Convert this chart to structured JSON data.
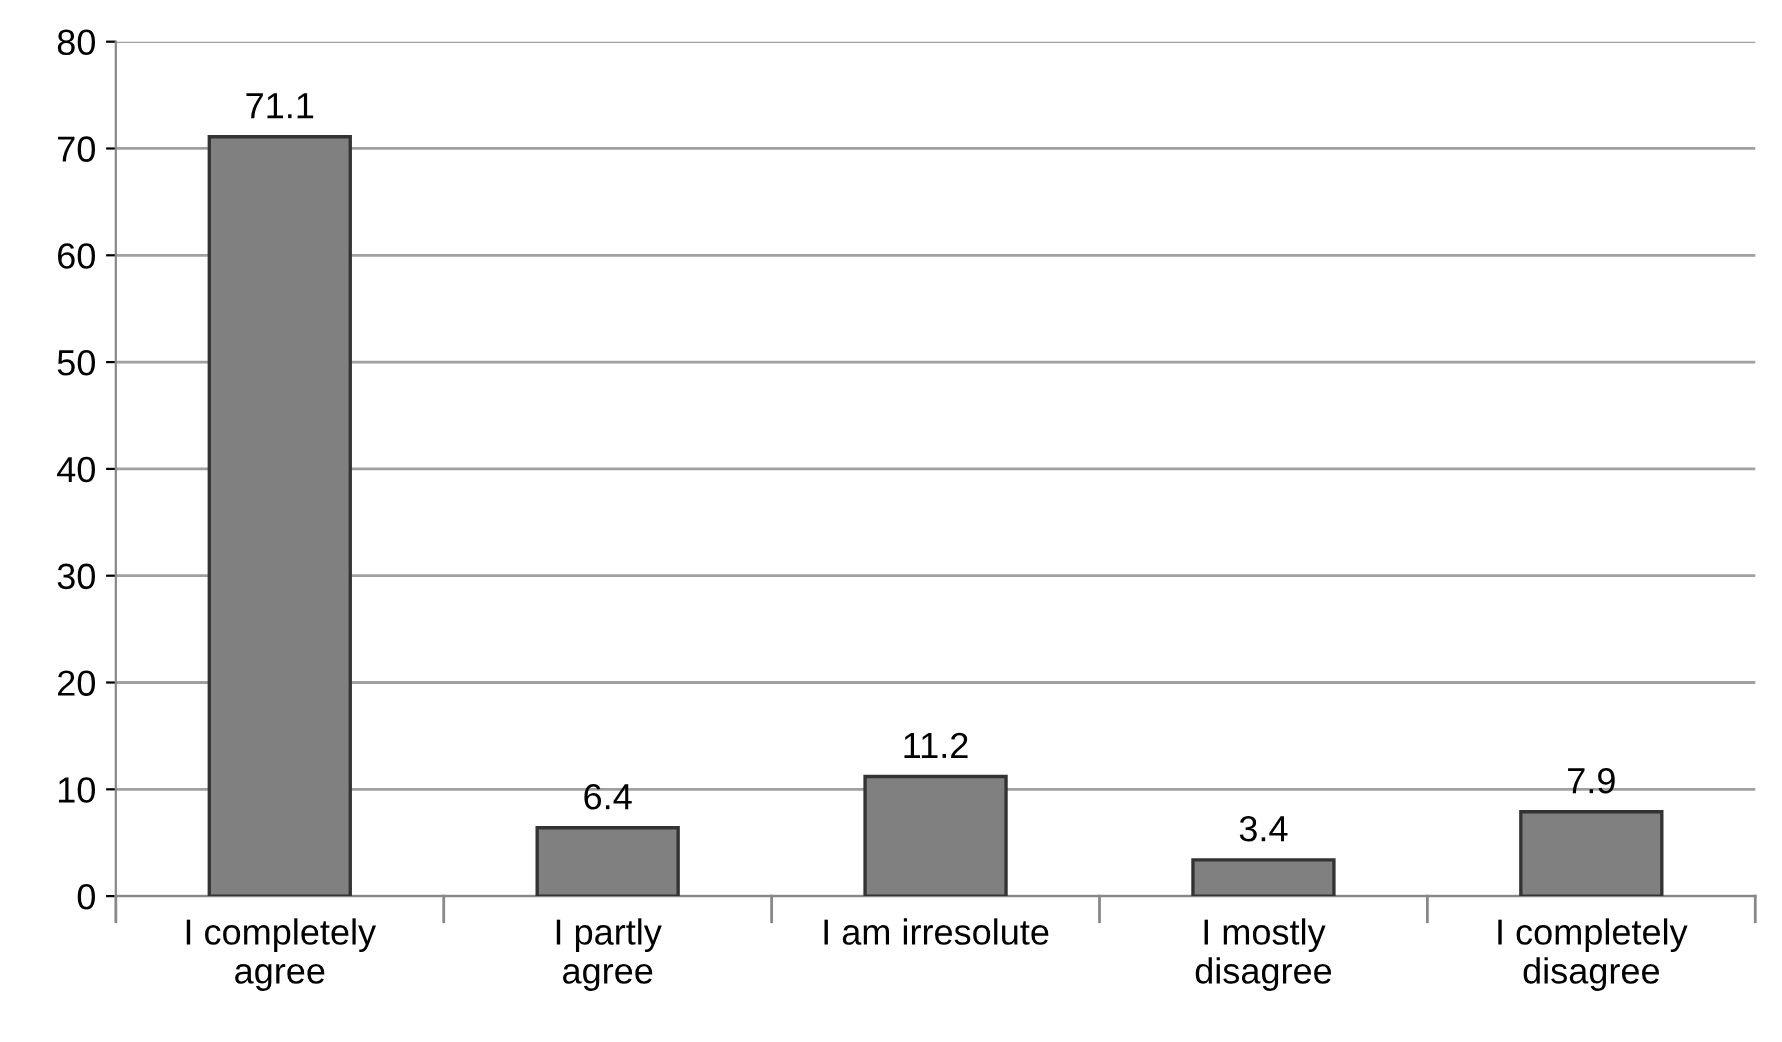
{
  "chart_data": {
    "type": "bar",
    "categories": [
      "I completely\nagree",
      "I partly\nagree",
      "I am irresolute",
      "I mostly\ndisagree",
      "I completely\ndisagree"
    ],
    "values": [
      71.1,
      6.4,
      11.2,
      3.4,
      7.9
    ],
    "color": "#808080",
    "ylim": [
      0,
      80
    ],
    "yticks": [
      0,
      10,
      20,
      30,
      40,
      50,
      60,
      70,
      80
    ],
    "grid": "y",
    "legend": false,
    "data_labels": true
  }
}
